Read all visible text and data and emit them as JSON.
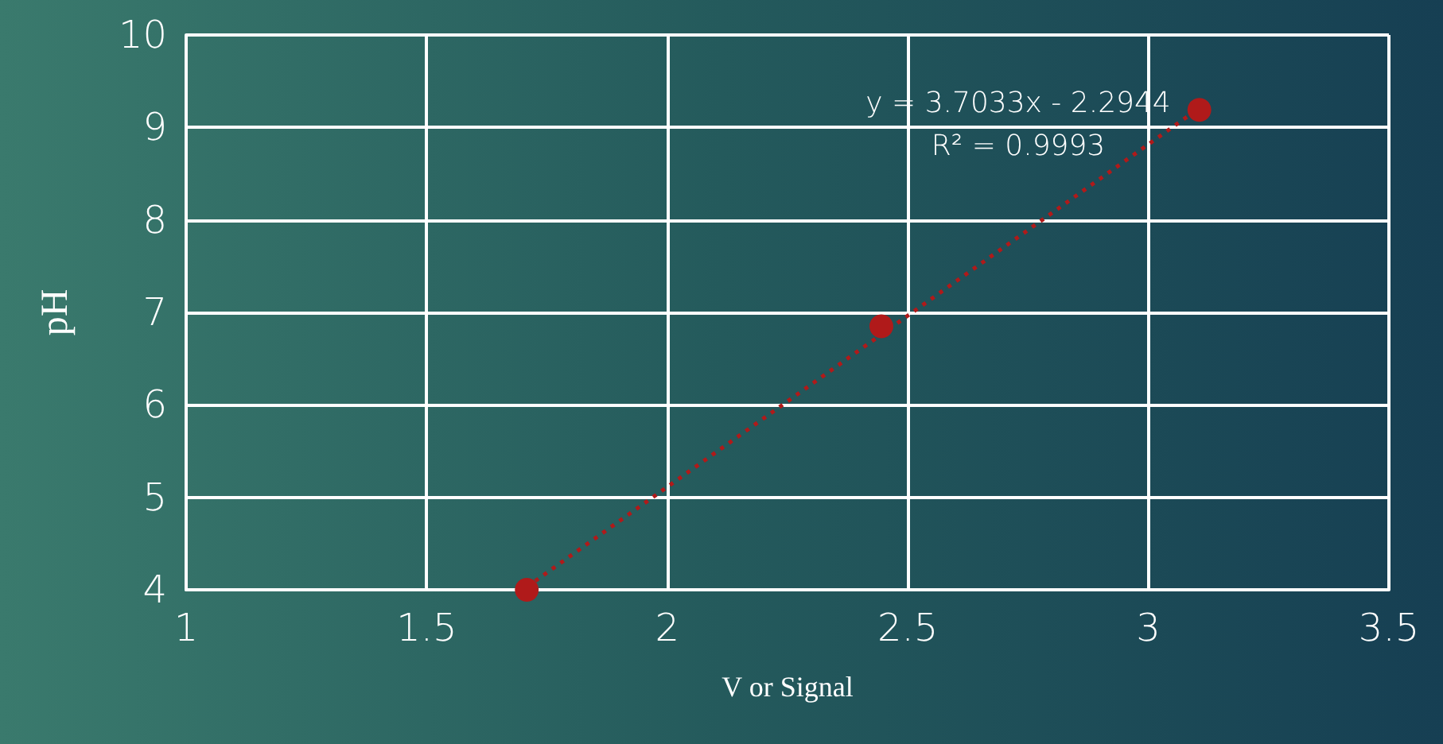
{
  "chart_data": {
    "type": "scatter",
    "xlabel": "V or Signal",
    "ylabel": "pH",
    "x": [
      1.708,
      2.445,
      3.106
    ],
    "series": [
      {
        "color": "#b01a1a",
        "marker": "circle",
        "values": [
          4.0,
          6.85,
          9.19
        ]
      },
      {
        "type": "line",
        "color": "#b01a1a",
        "line_style": "dotted",
        "x": [
          1.708,
          3.106
        ],
        "values": [
          4.03,
          9.21
        ]
      }
    ],
    "annotations": [
      "y = 3.7033x - 2.2944",
      "R² = 0.9993"
    ],
    "xlim": [
      1,
      3.5
    ],
    "xticks": [
      1,
      1.5,
      2,
      2.5,
      3,
      3.5
    ],
    "ylim": [
      4,
      10
    ],
    "yticks": [
      4,
      5,
      6,
      7,
      8,
      9,
      10
    ],
    "grid": true
  }
}
